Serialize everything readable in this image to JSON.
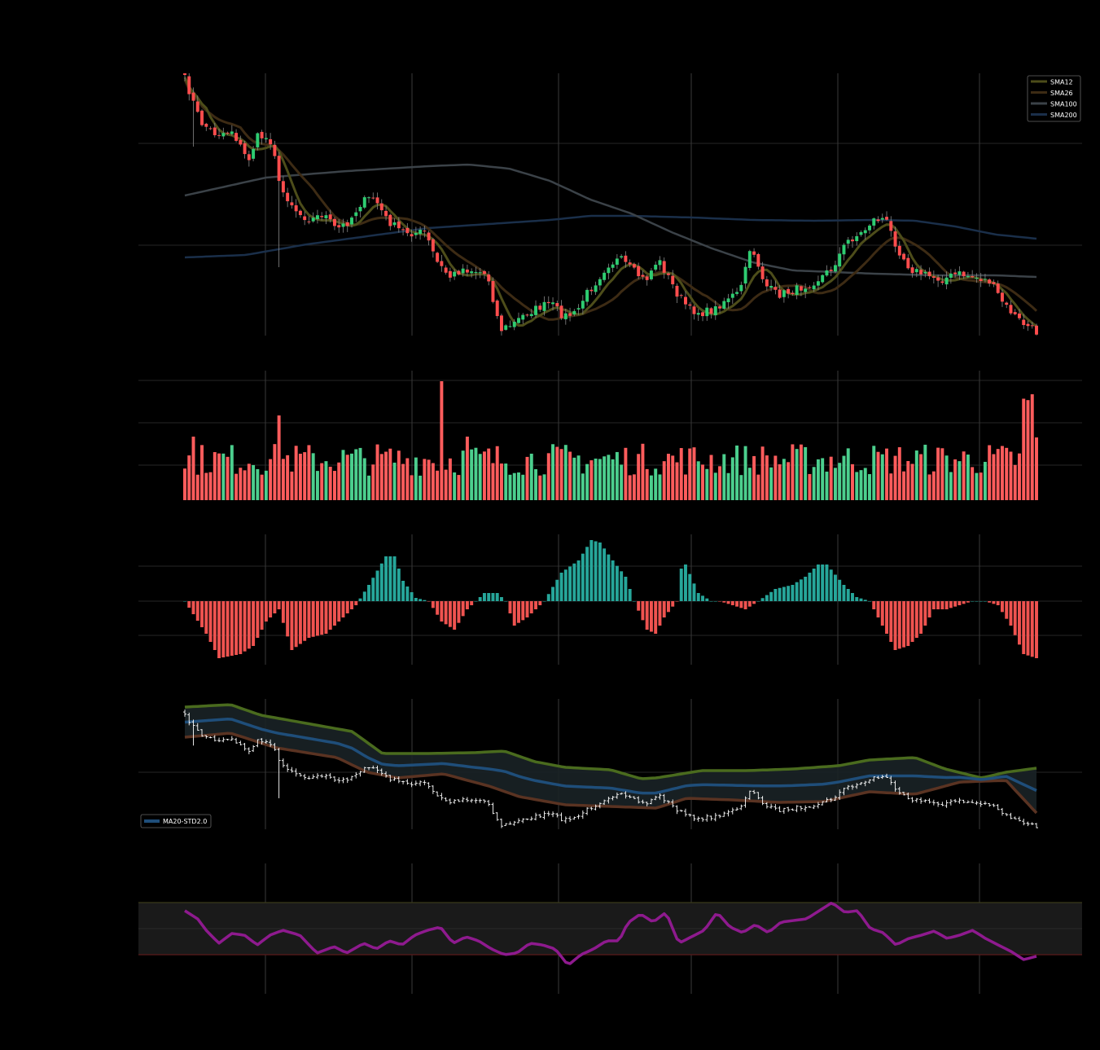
{
  "colors": {
    "background": "#000000",
    "grid": "#262626",
    "vgrid": "#3a3a3a",
    "up": "#2ecc71",
    "down": "#ff4d4d",
    "vol_up": "#4ccf8e",
    "vol_down": "#ff5c5c",
    "macd_up": "#26a69a",
    "macd_down": "#ef5350",
    "sma12": "#4d4d1a",
    "sma26": "#3d2b14",
    "sma100": "#3b4248",
    "sma200": "#1a2f4a",
    "bb_upper": "#4a6b1e",
    "bb_mid": "#1f4e7a",
    "bb_lower": "#5a3322",
    "bb_fill": "#1a2226",
    "rsi": "#8e1a8e",
    "rsi_band": "#1a1a1a",
    "rsi_top": "#3a3a1a",
    "rsi_bottom": "#5a1a1a",
    "bb_close": "#ffffff"
  },
  "chart_data": [
    {
      "id": "price",
      "type": "candlestick",
      "title": "",
      "xlabel": "",
      "ylabel": "",
      "legend": {
        "placement": "top-right",
        "entries": [
          "SMA12",
          "SMA26",
          "SMA100",
          "SMA200"
        ]
      },
      "grid": true
    },
    {
      "id": "volume",
      "type": "bar",
      "title": "",
      "grid": true
    },
    {
      "id": "macd",
      "type": "bar",
      "title": "",
      "grid": true
    },
    {
      "id": "bollinger",
      "type": "line",
      "title": "",
      "legend": {
        "placement": "bottom-left",
        "entries": [
          "MA20-STD2.0"
        ]
      },
      "grid": true
    },
    {
      "id": "rsi",
      "type": "line",
      "title": "",
      "grid": true
    }
  ]
}
